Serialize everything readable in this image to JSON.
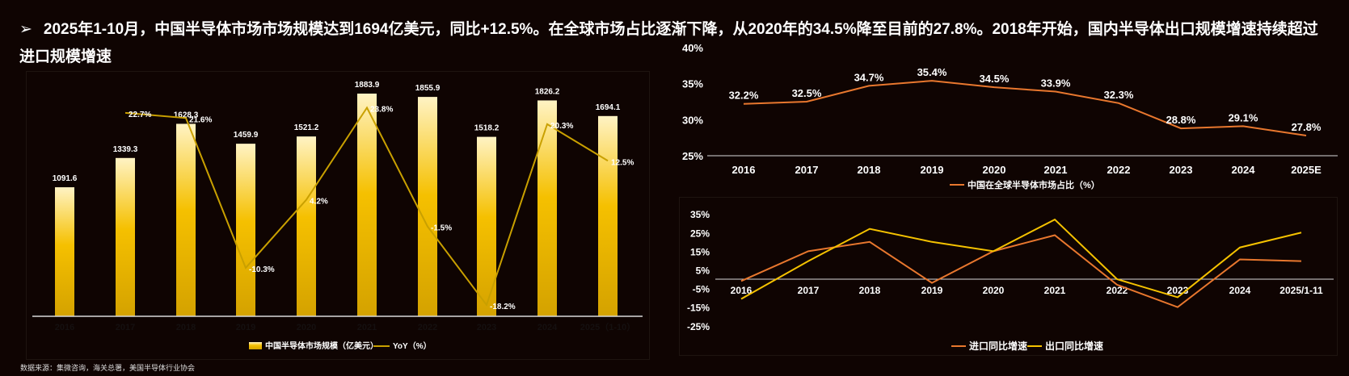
{
  "header": {
    "bullet_icon": "arrow-bullet-icon",
    "title": "2025年1-10月，中国半导体市场市场规模达到1694亿美元，同比+12.5%。在全球市场占比逐渐下降，从2020年的34.5%降至目前的27.8%。2018年开始，国内半导体出口规模增速持续超过进口规模增速"
  },
  "source": "数据来源：集微咨询，海关总署，美国半导体行业协会",
  "colors": {
    "bar_top": "#fff3c4",
    "bar_mid": "#f5c000",
    "bar_bottom": "#d4a200",
    "yoy": "#c9a000",
    "orange": "#e8772e",
    "yellow": "#f5c200"
  },
  "chart_data": [
    {
      "type": "bar",
      "title": "",
      "categories": [
        "2016",
        "2017",
        "2018",
        "2019",
        "2020",
        "2021",
        "2022",
        "2023",
        "2024",
        "2025（1-10）"
      ],
      "series": [
        {
          "name": "中国半导体市场规模（亿美元）",
          "type": "bar",
          "values": [
            1091.6,
            1339.3,
            1628.3,
            1459.9,
            1521.2,
            1883.9,
            1855.9,
            1518.2,
            1826.2,
            1694.1
          ],
          "labels": [
            "1091.6",
            "1339.3",
            "1628.3",
            "1459.9",
            "1521.2",
            "1883.9",
            "1855.9",
            "1518.2",
            "1826.2",
            "1694.1"
          ]
        },
        {
          "name": "YoY（%）",
          "type": "line",
          "values": [
            null,
            22.7,
            21.6,
            -10.3,
            4.2,
            23.8,
            -1.5,
            -18.2,
            20.3,
            12.5
          ],
          "labels": [
            "",
            "22.7%",
            "21.6%",
            "-10.3%",
            "4.2%",
            "23.8%",
            "-1.5%",
            "-18.2%",
            "20.3%",
            "12.5%"
          ]
        }
      ],
      "legend": "bottom"
    },
    {
      "type": "line",
      "categories": [
        "2016",
        "2017",
        "2018",
        "2019",
        "2020",
        "2021",
        "2022",
        "2023",
        "2024",
        "2025E"
      ],
      "series": [
        {
          "name": "中国在全球半导体市场占比（%）",
          "values": [
            32.2,
            32.5,
            34.7,
            35.4,
            34.5,
            33.9,
            32.3,
            28.8,
            29.1,
            27.8
          ],
          "labels": [
            "32.2%",
            "32.5%",
            "34.7%",
            "35.4%",
            "34.5%",
            "33.9%",
            "32.3%",
            "28.8%",
            "29.1%",
            "27.8%"
          ]
        }
      ],
      "ylim": [
        25,
        40
      ],
      "yticks": [
        "25%",
        "30%",
        "35%",
        "40%"
      ],
      "legend": "bottom"
    },
    {
      "type": "line",
      "categories": [
        "2016",
        "2017",
        "2018",
        "2019",
        "2020",
        "2021",
        "2022",
        "2023",
        "2024",
        "2025/1-11"
      ],
      "series": [
        {
          "name": "进口同比增速",
          "values": [
            -1,
            15,
            20,
            -2,
            15,
            23.6,
            -3,
            -15,
            10.6,
            9.7
          ]
        },
        {
          "name": "出口同比增速",
          "values": [
            -10.6,
            9.7,
            27,
            20,
            15,
            32,
            0,
            -9.7,
            17,
            25
          ]
        }
      ],
      "ylim": [
        -25,
        35
      ],
      "yticks": [
        "35%",
        "25%",
        "15%",
        "5%",
        "-5%",
        "-15%",
        "-25%"
      ],
      "legend": "bottom"
    }
  ]
}
